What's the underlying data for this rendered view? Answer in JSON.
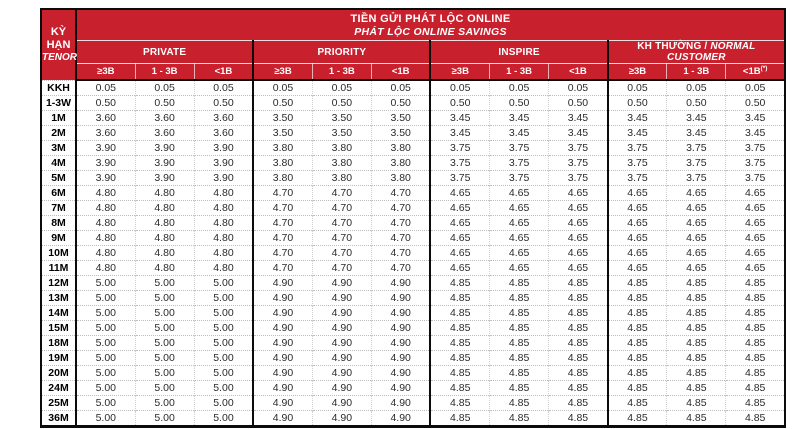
{
  "colors": {
    "brand_red": "#C9202E",
    "border_black": "#0B0B0B",
    "text_dark": "#2B2B2B"
  },
  "table": {
    "title": {
      "line1": "TIỀN GỬI PHÁT LỘC ONLINE",
      "line2": "PHÁT LỘC ONLINE SAVINGS"
    },
    "tenor_header": {
      "line1": "KỲ HẠN",
      "line2": "TENOR"
    },
    "groups": [
      {
        "label_bold": "PRIVATE",
        "label_italic": ""
      },
      {
        "label_bold": "PRIORITY",
        "label_italic": ""
      },
      {
        "label_bold": "INSPIRE",
        "label_italic": ""
      },
      {
        "label_bold": "KH THƯỜNG /",
        "label_italic": "NORMAL CUSTOMER"
      }
    ],
    "subheaders": [
      {
        "label": "≥3B"
      },
      {
        "label": "1 - 3B"
      },
      {
        "label": "<1B"
      },
      {
        "label": "≥3B"
      },
      {
        "label": "1 - 3B"
      },
      {
        "label": "<1B"
      },
      {
        "label": "≥3B"
      },
      {
        "label": "1 - 3B"
      },
      {
        "label": "<1B"
      },
      {
        "label": "≥3B"
      },
      {
        "label": "1 - 3B"
      },
      {
        "label": "<1B",
        "sup": "(*)"
      }
    ],
    "rows": [
      {
        "tenor": "KKH",
        "values": [
          "0.05",
          "0.05",
          "0.05",
          "0.05",
          "0.05",
          "0.05",
          "0.05",
          "0.05",
          "0.05",
          "0.05",
          "0.05",
          "0.05"
        ]
      },
      {
        "tenor": "1-3W",
        "values": [
          "0.50",
          "0.50",
          "0.50",
          "0.50",
          "0.50",
          "0.50",
          "0.50",
          "0.50",
          "0.50",
          "0.50",
          "0.50",
          "0.50"
        ]
      },
      {
        "tenor": "1M",
        "values": [
          "3.60",
          "3.60",
          "3.60",
          "3.50",
          "3.50",
          "3.50",
          "3.45",
          "3.45",
          "3.45",
          "3.45",
          "3.45",
          "3.45"
        ]
      },
      {
        "tenor": "2M",
        "values": [
          "3.60",
          "3.60",
          "3.60",
          "3.50",
          "3.50",
          "3.50",
          "3.45",
          "3.45",
          "3.45",
          "3.45",
          "3.45",
          "3.45"
        ]
      },
      {
        "tenor": "3M",
        "values": [
          "3.90",
          "3.90",
          "3.90",
          "3.80",
          "3.80",
          "3.80",
          "3.75",
          "3.75",
          "3.75",
          "3.75",
          "3.75",
          "3.75"
        ]
      },
      {
        "tenor": "4M",
        "values": [
          "3.90",
          "3.90",
          "3.90",
          "3.80",
          "3.80",
          "3.80",
          "3.75",
          "3.75",
          "3.75",
          "3.75",
          "3.75",
          "3.75"
        ]
      },
      {
        "tenor": "5M",
        "values": [
          "3.90",
          "3.90",
          "3.90",
          "3.80",
          "3.80",
          "3.80",
          "3.75",
          "3.75",
          "3.75",
          "3.75",
          "3.75",
          "3.75"
        ]
      },
      {
        "tenor": "6M",
        "values": [
          "4.80",
          "4.80",
          "4.80",
          "4.70",
          "4.70",
          "4.70",
          "4.65",
          "4.65",
          "4.65",
          "4.65",
          "4.65",
          "4.65"
        ]
      },
      {
        "tenor": "7M",
        "values": [
          "4.80",
          "4.80",
          "4.80",
          "4.70",
          "4.70",
          "4.70",
          "4.65",
          "4.65",
          "4.65",
          "4.65",
          "4.65",
          "4.65"
        ]
      },
      {
        "tenor": "8M",
        "values": [
          "4.80",
          "4.80",
          "4.80",
          "4.70",
          "4.70",
          "4.70",
          "4.65",
          "4.65",
          "4.65",
          "4.65",
          "4.65",
          "4.65"
        ]
      },
      {
        "tenor": "9M",
        "values": [
          "4.80",
          "4.80",
          "4.80",
          "4.70",
          "4.70",
          "4.70",
          "4.65",
          "4.65",
          "4.65",
          "4.65",
          "4.65",
          "4.65"
        ]
      },
      {
        "tenor": "10M",
        "values": [
          "4.80",
          "4.80",
          "4.80",
          "4.70",
          "4.70",
          "4.70",
          "4.65",
          "4.65",
          "4.65",
          "4.65",
          "4.65",
          "4.65"
        ]
      },
      {
        "tenor": "11M",
        "values": [
          "4.80",
          "4.80",
          "4.80",
          "4.70",
          "4.70",
          "4.70",
          "4.65",
          "4.65",
          "4.65",
          "4.65",
          "4.65",
          "4.65"
        ]
      },
      {
        "tenor": "12M",
        "values": [
          "5.00",
          "5.00",
          "5.00",
          "4.90",
          "4.90",
          "4.90",
          "4.85",
          "4.85",
          "4.85",
          "4.85",
          "4.85",
          "4.85"
        ]
      },
      {
        "tenor": "13M",
        "values": [
          "5.00",
          "5.00",
          "5.00",
          "4.90",
          "4.90",
          "4.90",
          "4.85",
          "4.85",
          "4.85",
          "4.85",
          "4.85",
          "4.85"
        ]
      },
      {
        "tenor": "14M",
        "values": [
          "5.00",
          "5.00",
          "5.00",
          "4.90",
          "4.90",
          "4.90",
          "4.85",
          "4.85",
          "4.85",
          "4.85",
          "4.85",
          "4.85"
        ]
      },
      {
        "tenor": "15M",
        "values": [
          "5.00",
          "5.00",
          "5.00",
          "4.90",
          "4.90",
          "4.90",
          "4.85",
          "4.85",
          "4.85",
          "4.85",
          "4.85",
          "4.85"
        ]
      },
      {
        "tenor": "18M",
        "values": [
          "5.00",
          "5.00",
          "5.00",
          "4.90",
          "4.90",
          "4.90",
          "4.85",
          "4.85",
          "4.85",
          "4.85",
          "4.85",
          "4.85"
        ]
      },
      {
        "tenor": "19M",
        "values": [
          "5.00",
          "5.00",
          "5.00",
          "4.90",
          "4.90",
          "4.90",
          "4.85",
          "4.85",
          "4.85",
          "4.85",
          "4.85",
          "4.85"
        ]
      },
      {
        "tenor": "20M",
        "values": [
          "5.00",
          "5.00",
          "5.00",
          "4.90",
          "4.90",
          "4.90",
          "4.85",
          "4.85",
          "4.85",
          "4.85",
          "4.85",
          "4.85"
        ]
      },
      {
        "tenor": "24M",
        "values": [
          "5.00",
          "5.00",
          "5.00",
          "4.90",
          "4.90",
          "4.90",
          "4.85",
          "4.85",
          "4.85",
          "4.85",
          "4.85",
          "4.85"
        ]
      },
      {
        "tenor": "25M",
        "values": [
          "5.00",
          "5.00",
          "5.00",
          "4.90",
          "4.90",
          "4.90",
          "4.85",
          "4.85",
          "4.85",
          "4.85",
          "4.85",
          "4.85"
        ]
      },
      {
        "tenor": "36M",
        "values": [
          "5.00",
          "5.00",
          "5.00",
          "4.90",
          "4.90",
          "4.90",
          "4.85",
          "4.85",
          "4.85",
          "4.85",
          "4.85",
          "4.85"
        ]
      }
    ]
  }
}
